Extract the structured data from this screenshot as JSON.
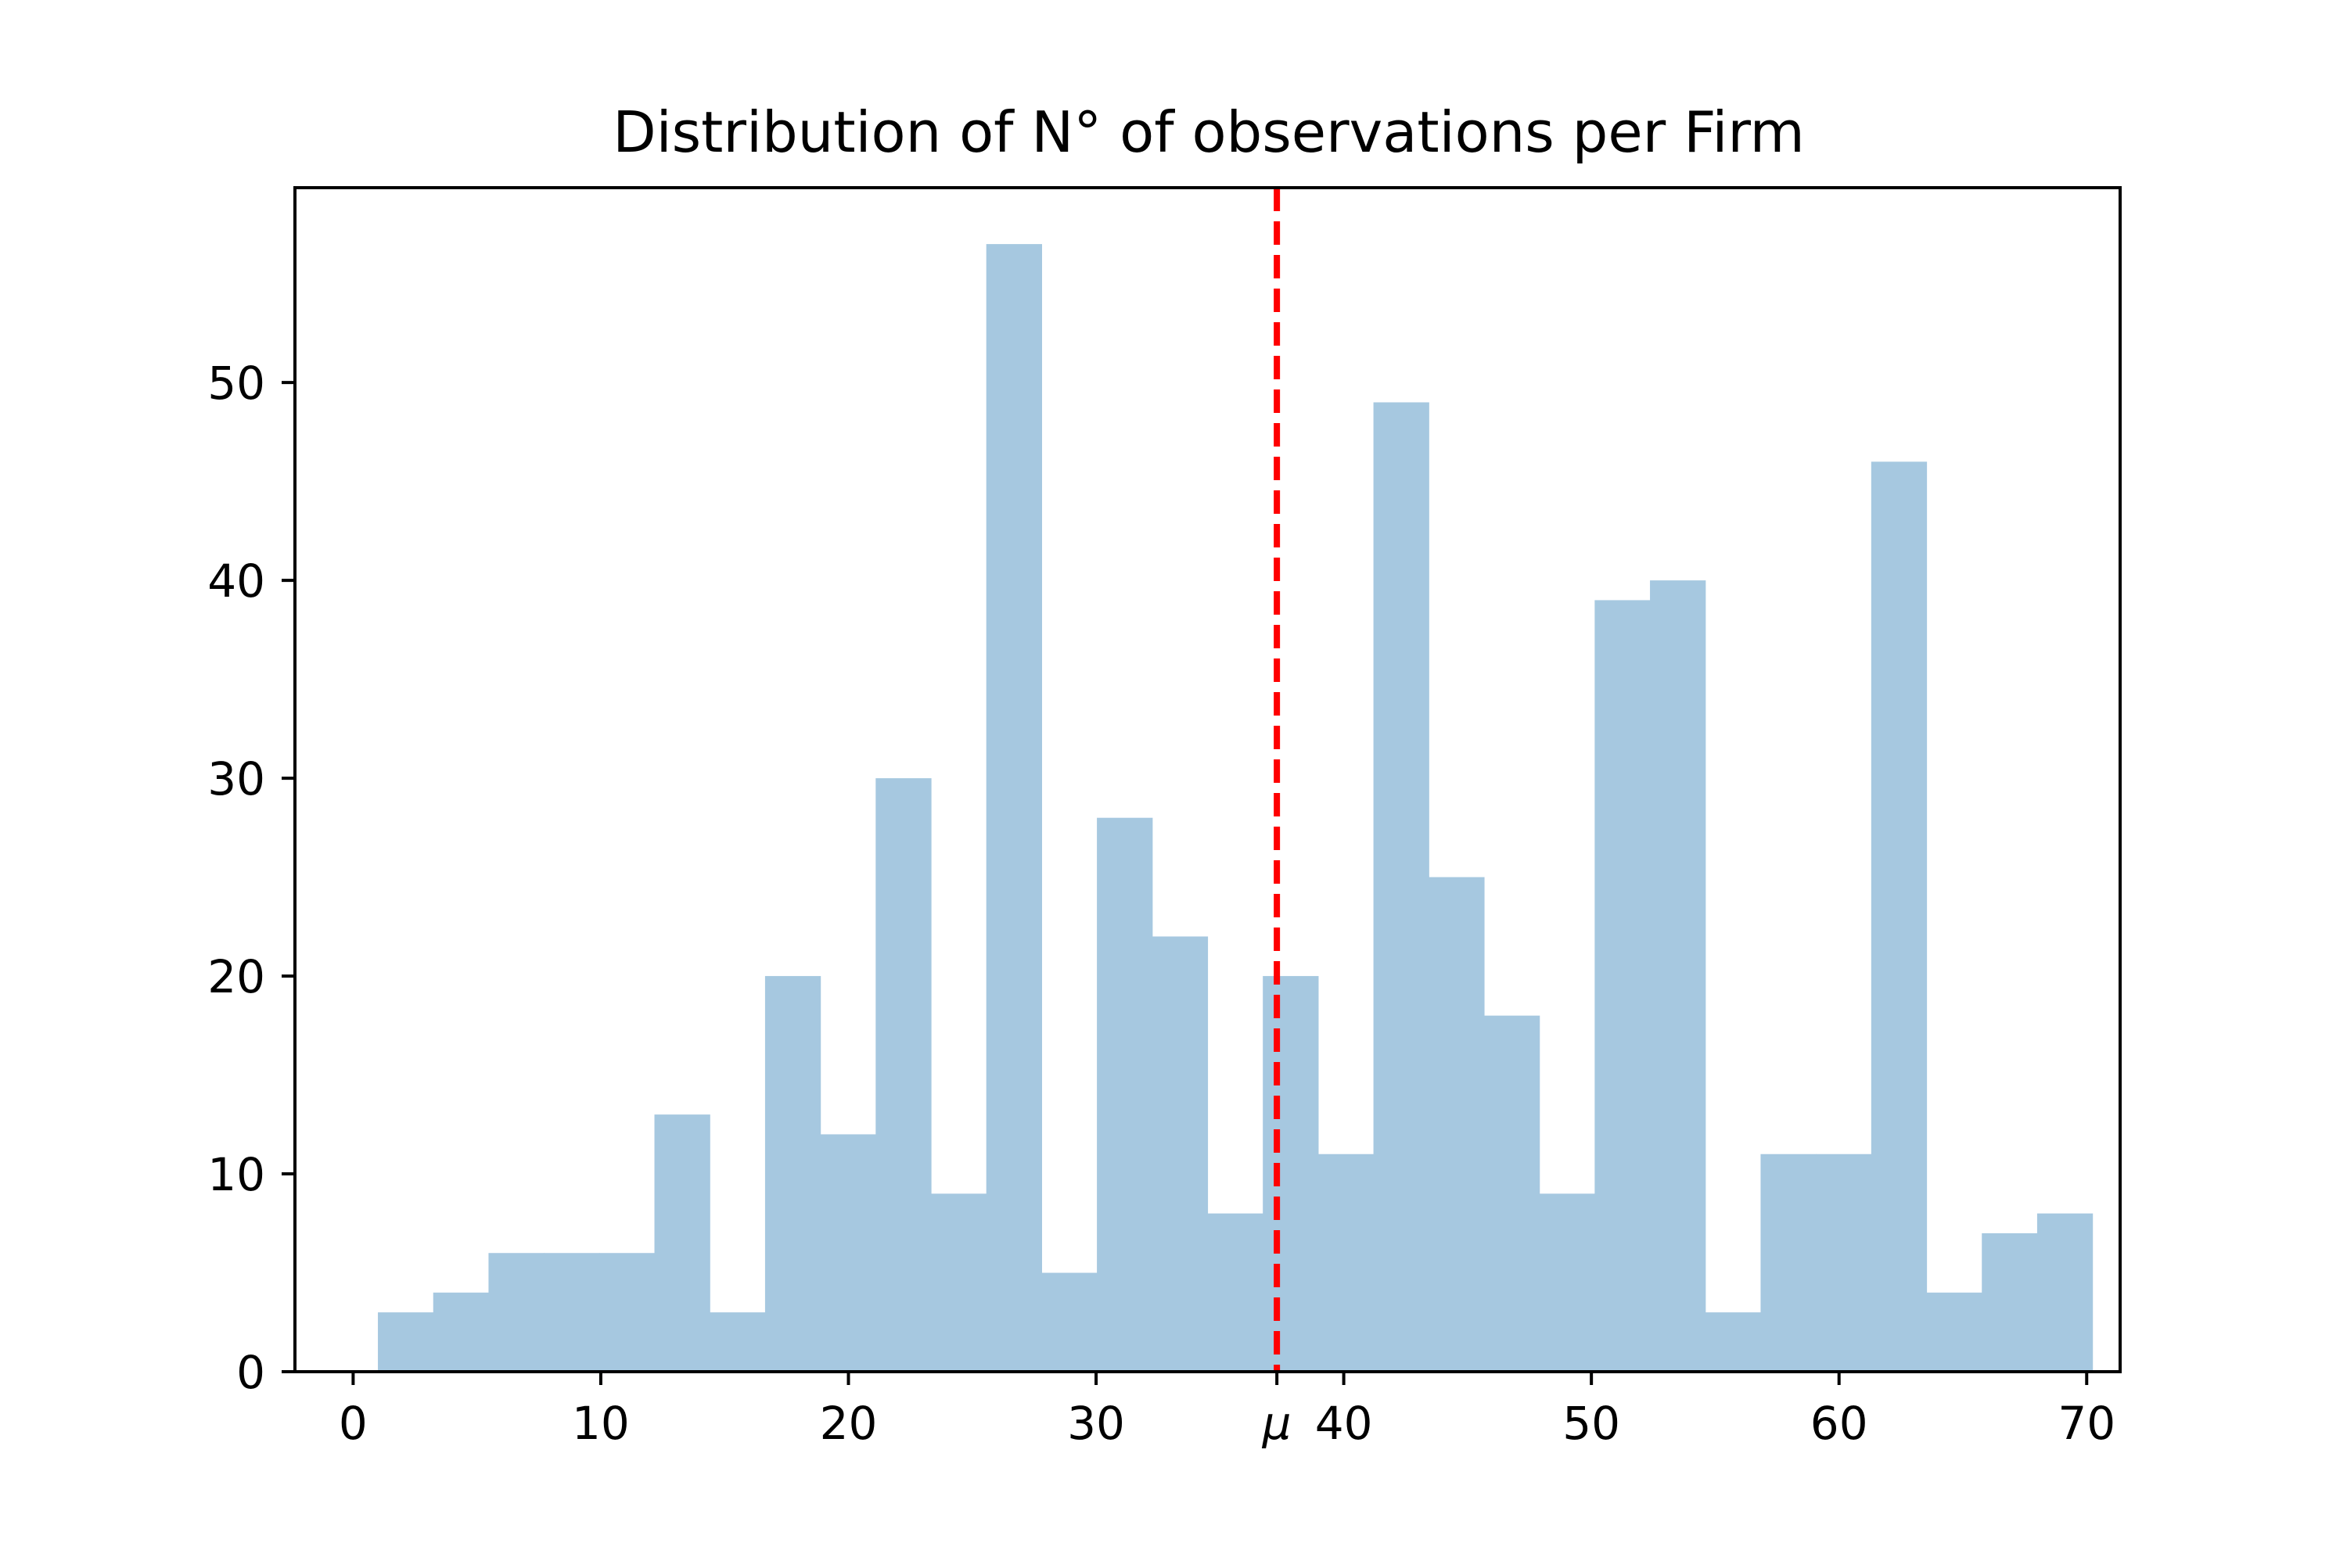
{
  "chart_data": {
    "type": "bar",
    "title": "Distribution of N° of observations per Firm",
    "xlabel": "",
    "ylabel": "",
    "xlim": [
      -2.35,
      71.35
    ],
    "ylim": [
      0,
      59.85
    ],
    "bin_start": 1,
    "bin_width": 2.2333,
    "values": [
      3,
      4,
      6,
      6,
      6,
      13,
      3,
      20,
      12,
      30,
      9,
      57,
      5,
      28,
      22,
      8,
      20,
      11,
      49,
      25,
      18,
      9,
      39,
      40,
      3,
      11,
      11,
      46,
      4,
      7,
      8
    ],
    "x_ticks": [
      0,
      10,
      20,
      30,
      40,
      50,
      60,
      70
    ],
    "x_tick_labels": [
      "0",
      "10",
      "20",
      "30",
      "40",
      "50",
      "60",
      "70"
    ],
    "y_ticks": [
      0,
      10,
      20,
      30,
      40,
      50
    ],
    "y_tick_labels": [
      "0",
      "10",
      "20",
      "30",
      "40",
      "50"
    ],
    "mean_line": {
      "x": 37.3,
      "label": "μ",
      "color": "#ff0000",
      "style": "dashed"
    },
    "bar_color": "#a6c8e0",
    "grid": false
  }
}
